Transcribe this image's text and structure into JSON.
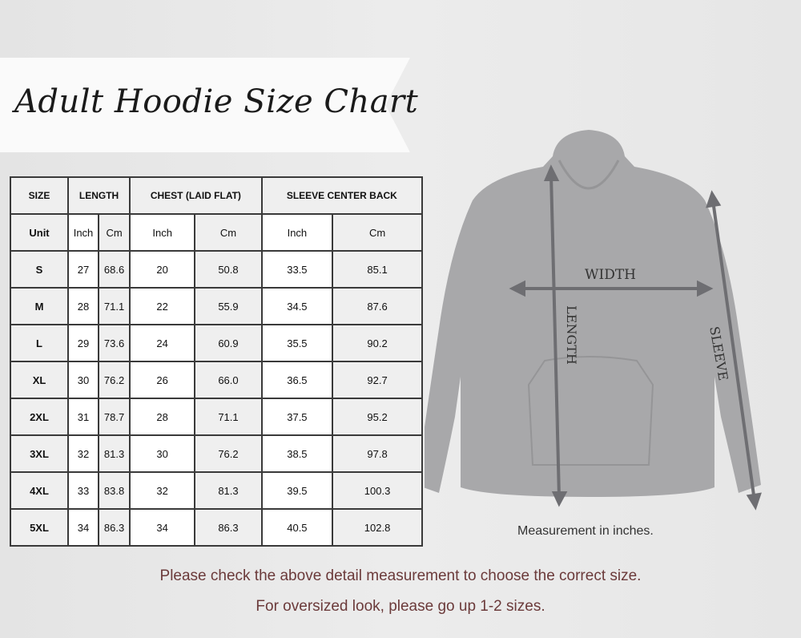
{
  "title": "Adult Hoodie Size Chart",
  "table": {
    "groups": [
      "SIZE",
      "LENGTH",
      "CHEST (LAID FLAT)",
      "SLEEVE CENTER BACK"
    ],
    "units": [
      "Unit",
      "Inch",
      "Cm",
      "Inch",
      "Cm",
      "Inch",
      "Cm"
    ],
    "rows": [
      [
        "S",
        "27",
        "68.6",
        "20",
        "50.8",
        "33.5",
        "85.1"
      ],
      [
        "M",
        "28",
        "71.1",
        "22",
        "55.9",
        "34.5",
        "87.6"
      ],
      [
        "L",
        "29",
        "73.6",
        "24",
        "60.9",
        "35.5",
        "90.2"
      ],
      [
        "XL",
        "30",
        "76.2",
        "26",
        "66.0",
        "36.5",
        "92.7"
      ],
      [
        "2XL",
        "31",
        "78.7",
        "28",
        "71.1",
        "37.5",
        "95.2"
      ],
      [
        "3XL",
        "32",
        "81.3",
        "30",
        "76.2",
        "38.5",
        "97.8"
      ],
      [
        "4XL",
        "33",
        "83.8",
        "32",
        "81.3",
        "39.5",
        "100.3"
      ],
      [
        "5XL",
        "34",
        "86.3",
        "34",
        "86.3",
        "40.5",
        "102.8"
      ]
    ]
  },
  "diagram": {
    "width_label": "WIDTH",
    "length_label": "LENGTH",
    "sleeve_label": "SLEEVE",
    "hoodie_color": "#a8a8aa",
    "arrow_color": "#6e6e72"
  },
  "note": "Measurement in inches.",
  "footer": [
    "Please check the above detail measurement to choose the correct size.",
    "For oversized look,  please go up 1-2 sizes."
  ],
  "footer_color": "#6b3a3a"
}
